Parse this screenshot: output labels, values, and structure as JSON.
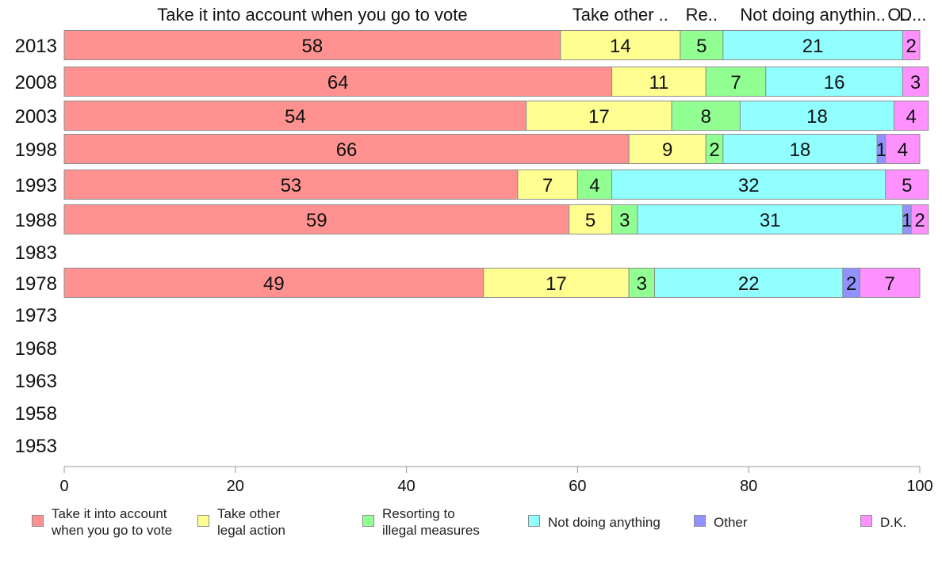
{
  "chart_data": {
    "type": "bar",
    "orientation": "horizontal",
    "stacked": true,
    "categories": [
      "2013",
      "2008",
      "2003",
      "1998",
      "1993",
      "1988",
      "1983",
      "1978",
      "1973",
      "1968",
      "1963",
      "1958",
      "1953"
    ],
    "series": [
      {
        "name": "Take it into account when you go to vote",
        "header": "Take it into account when you go to vote",
        "legend_lines": [
          "Take it into account",
          "when you go to vote"
        ],
        "color": "#ff9191",
        "values": [
          58,
          64,
          54,
          66,
          53,
          59,
          null,
          49,
          null,
          null,
          null,
          null,
          null
        ]
      },
      {
        "name": "Take other legal action",
        "header": "Take other ..",
        "legend_lines": [
          "Take other",
          "legal action"
        ],
        "color": "#ffff91",
        "values": [
          14,
          11,
          17,
          9,
          7,
          5,
          null,
          17,
          null,
          null,
          null,
          null,
          null
        ]
      },
      {
        "name": "Resorting to illegal measures",
        "header": "Re..",
        "legend_lines": [
          "Resorting to",
          "illegal measures"
        ],
        "color": "#91ff91",
        "values": [
          5,
          7,
          8,
          2,
          4,
          3,
          null,
          3,
          null,
          null,
          null,
          null,
          null
        ]
      },
      {
        "name": "Not doing anything",
        "header": "Not doing anythin..",
        "legend_lines": [
          "Not doing anything"
        ],
        "color": "#91ffff",
        "values": [
          21,
          16,
          18,
          18,
          32,
          31,
          null,
          22,
          null,
          null,
          null,
          null,
          null
        ]
      },
      {
        "name": "Other",
        "header": "O..",
        "legend_lines": [
          "Other"
        ],
        "color": "#9191ff",
        "values": [
          0,
          0,
          0,
          1,
          0,
          1,
          null,
          2,
          null,
          null,
          null,
          null,
          null
        ]
      },
      {
        "name": "D.K.",
        "header": "D...",
        "legend_lines": [
          "D.K."
        ],
        "color": "#ff91ff",
        "values": [
          2,
          3,
          4,
          4,
          5,
          2,
          null,
          7,
          null,
          null,
          null,
          null,
          null
        ]
      }
    ],
    "xlim": [
      0,
      100
    ],
    "xticks": [
      0,
      20,
      40,
      60,
      80,
      100
    ],
    "grid": false,
    "legend_position": "bottom",
    "title": "",
    "xlabel": "",
    "ylabel": ""
  }
}
